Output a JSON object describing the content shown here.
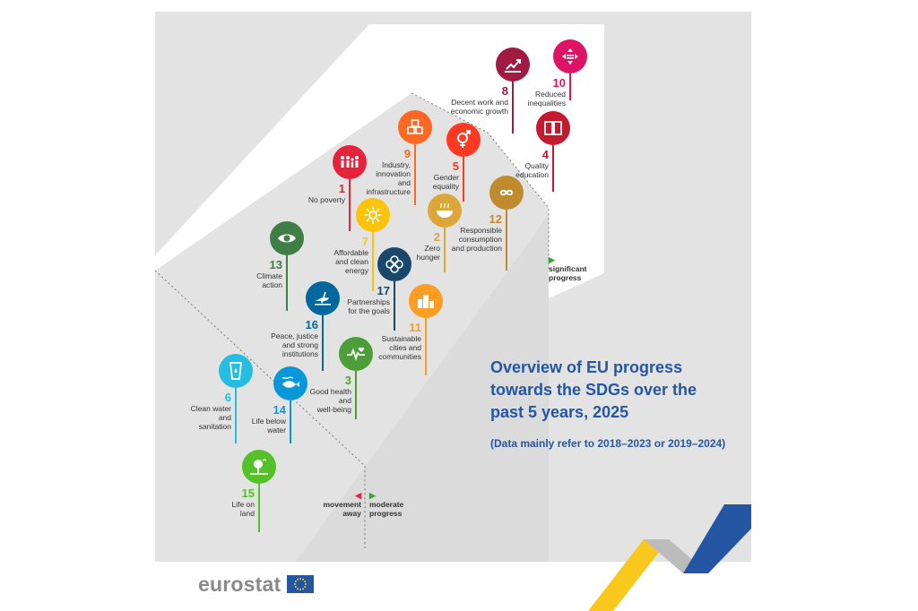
{
  "title": "Overview of EU progress towards the SDGs over the past 5 years, 2025",
  "subtitle": "(Data mainly refer to 2018–2023 or 2019–2024)",
  "markers": {
    "significant": "significant\nprogress",
    "moderate": "moderate\nprogress",
    "away": "movement\naway"
  },
  "brand": "eurostat",
  "colors": {
    "background_panel": "#e3e3e3",
    "white_arrow": "#ffffff",
    "title": "#2456a4",
    "marker_green": "#3aa535",
    "marker_red": "#e5243b"
  },
  "goals": [
    {
      "number": "8",
      "label": "Decent work and\neconomic growth",
      "color": "#a21942",
      "icon": "growth-chart-icon"
    },
    {
      "number": "10",
      "label": "Reduced\ninequalities",
      "color": "#dd1367",
      "icon": "equality-arrows-icon"
    },
    {
      "number": "9",
      "label": "Industry,\ninnovation\nand\ninfrastructure",
      "color": "#fd6925",
      "icon": "cubes-icon"
    },
    {
      "number": "5",
      "label": "Gender\nequality",
      "color": "#ff3a21",
      "icon": "gender-symbol-icon"
    },
    {
      "number": "4",
      "label": "Quality\neducation",
      "color": "#c5192d",
      "icon": "book-icon"
    },
    {
      "number": "1",
      "label": "No poverty",
      "color": "#e5243b",
      "icon": "family-icon"
    },
    {
      "number": "12",
      "label": "Responsible\nconsumption\nand production",
      "color": "#bf8b2e",
      "icon": "infinity-icon"
    },
    {
      "number": "7",
      "label": "Affordable\nand clean\nenergy",
      "color": "#fcc30b",
      "icon": "sun-icon"
    },
    {
      "number": "2",
      "label": "Zero\nhunger",
      "color": "#dda63a",
      "icon": "bowl-icon"
    },
    {
      "number": "13",
      "label": "Climate\naction",
      "color": "#3f7e44",
      "icon": "eye-globe-icon"
    },
    {
      "number": "17",
      "label": "Partnerships\nfor the goals",
      "color": "#19486a",
      "icon": "rings-icon"
    },
    {
      "number": "16",
      "label": "Peace, justice\nand strong\ninstitutions",
      "color": "#00689d",
      "icon": "dove-icon"
    },
    {
      "number": "11",
      "label": "Sustainable\ncities and\ncommunities",
      "color": "#fd9d24",
      "icon": "buildings-icon"
    },
    {
      "number": "3",
      "label": "Good health\nand\nwell-being",
      "color": "#4c9f38",
      "icon": "heartbeat-icon"
    },
    {
      "number": "6",
      "label": "Clean water\nand\nsanitation",
      "color": "#26bde2",
      "icon": "water-glass-icon"
    },
    {
      "number": "14",
      "label": "Life below\nwater",
      "color": "#0a97d9",
      "icon": "fish-icon"
    },
    {
      "number": "15",
      "label": "Life on\nland",
      "color": "#56c02b",
      "icon": "tree-icon"
    }
  ]
}
